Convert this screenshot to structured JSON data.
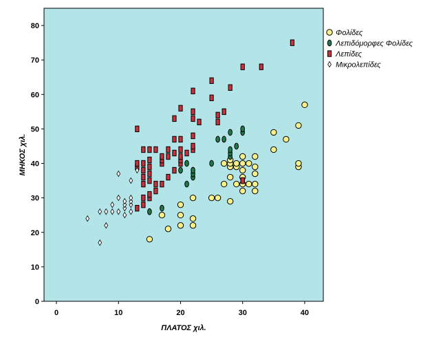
{
  "chart_data": {
    "type": "scatter",
    "xlabel": "ΠΛΑΤΟΣ χιλ.",
    "ylabel": "ΜΗΚΟΣ χιλ.",
    "xlim": [
      -2,
      43
    ],
    "ylim": [
      0,
      85
    ],
    "xticks": [
      0,
      10,
      20,
      30,
      40
    ],
    "yticks": [
      0,
      10,
      20,
      30,
      40,
      50,
      60,
      70,
      80
    ],
    "grid": false,
    "background": "#b3e5e8",
    "legend": "right",
    "series": [
      {
        "name": "Φολίδες",
        "marker": "circle",
        "color": "#f8f08a",
        "points": [
          [
            15,
            18
          ],
          [
            17,
            25
          ],
          [
            18,
            21
          ],
          [
            20,
            22
          ],
          [
            20,
            25
          ],
          [
            20,
            28
          ],
          [
            22,
            22
          ],
          [
            22,
            24
          ],
          [
            22,
            30
          ],
          [
            25,
            30
          ],
          [
            26,
            30
          ],
          [
            27,
            34
          ],
          [
            27,
            40
          ],
          [
            28,
            29
          ],
          [
            28,
            36
          ],
          [
            28,
            39
          ],
          [
            28,
            40
          ],
          [
            28,
            41
          ],
          [
            29,
            34
          ],
          [
            29,
            39
          ],
          [
            29,
            40
          ],
          [
            30,
            32
          ],
          [
            30,
            34
          ],
          [
            30,
            36
          ],
          [
            30,
            38
          ],
          [
            30,
            40
          ],
          [
            30,
            42
          ],
          [
            31,
            34
          ],
          [
            31,
            40
          ],
          [
            32,
            32
          ],
          [
            32,
            34
          ],
          [
            32,
            37
          ],
          [
            32,
            39
          ],
          [
            32,
            42
          ],
          [
            35,
            44
          ],
          [
            35,
            49
          ],
          [
            37,
            47
          ],
          [
            39,
            39
          ],
          [
            39,
            40
          ],
          [
            39,
            51
          ],
          [
            40,
            57
          ]
        ]
      },
      {
        "name": "Λεπιδόμορφες Φολίδες",
        "marker": "ellipse",
        "color": "#1f7a4c",
        "points": [
          [
            15,
            26
          ],
          [
            17,
            27
          ],
          [
            20,
            38
          ],
          [
            21,
            34
          ],
          [
            21,
            40
          ],
          [
            22,
            36
          ],
          [
            22,
            37
          ],
          [
            22,
            38
          ],
          [
            25,
            40
          ],
          [
            26,
            47
          ],
          [
            27,
            47
          ],
          [
            28,
            42
          ],
          [
            28,
            43
          ],
          [
            28,
            44
          ],
          [
            28,
            49
          ],
          [
            29,
            45
          ],
          [
            30,
            49
          ],
          [
            30,
            50
          ],
          [
            30,
            35
          ]
        ]
      },
      {
        "name": "Λεπίδες",
        "marker": "rect",
        "color": "#c8323c",
        "points": [
          [
            13,
            27
          ],
          [
            13,
            39
          ],
          [
            13,
            40
          ],
          [
            13,
            50
          ],
          [
            14,
            28
          ],
          [
            14,
            30
          ],
          [
            14,
            34
          ],
          [
            14,
            36
          ],
          [
            14,
            38
          ],
          [
            14,
            40
          ],
          [
            14,
            44
          ],
          [
            15,
            30
          ],
          [
            15,
            31
          ],
          [
            15,
            35
          ],
          [
            15,
            37
          ],
          [
            15,
            39
          ],
          [
            15,
            41
          ],
          [
            15,
            44
          ],
          [
            16,
            32
          ],
          [
            16,
            34
          ],
          [
            16,
            44
          ],
          [
            17,
            34
          ],
          [
            17,
            40
          ],
          [
            17,
            41
          ],
          [
            17,
            42
          ],
          [
            18,
            36
          ],
          [
            18,
            42
          ],
          [
            18,
            44
          ],
          [
            19,
            38
          ],
          [
            19,
            43
          ],
          [
            19,
            47
          ],
          [
            19,
            53
          ],
          [
            20,
            40
          ],
          [
            20,
            41
          ],
          [
            20,
            42
          ],
          [
            20,
            44
          ],
          [
            20,
            47
          ],
          [
            20,
            56
          ],
          [
            21,
            43
          ],
          [
            22,
            44
          ],
          [
            22,
            45
          ],
          [
            22,
            48
          ],
          [
            22,
            53
          ],
          [
            22,
            55
          ],
          [
            22,
            61
          ],
          [
            23,
            52
          ],
          [
            25,
            59
          ],
          [
            25,
            64
          ],
          [
            26,
            52
          ],
          [
            26,
            54
          ],
          [
            27,
            55
          ],
          [
            28,
            62
          ],
          [
            30,
            35
          ],
          [
            30,
            68
          ],
          [
            33,
            68
          ],
          [
            38,
            75
          ]
        ]
      },
      {
        "name": "Μικρολεπίδες",
        "marker": "diamond",
        "color": "#ffffff",
        "points": [
          [
            5,
            24
          ],
          [
            7,
            17
          ],
          [
            7,
            26
          ],
          [
            8,
            22
          ],
          [
            8,
            26
          ],
          [
            9,
            26
          ],
          [
            9,
            28
          ],
          [
            10,
            26
          ],
          [
            10,
            30
          ],
          [
            10,
            37
          ],
          [
            11,
            25
          ],
          [
            11,
            27
          ],
          [
            11,
            28
          ],
          [
            11,
            29
          ],
          [
            12,
            26
          ],
          [
            12,
            28
          ],
          [
            12,
            29
          ],
          [
            12,
            30
          ],
          [
            12,
            35
          ],
          [
            13,
            38
          ]
        ]
      }
    ]
  }
}
